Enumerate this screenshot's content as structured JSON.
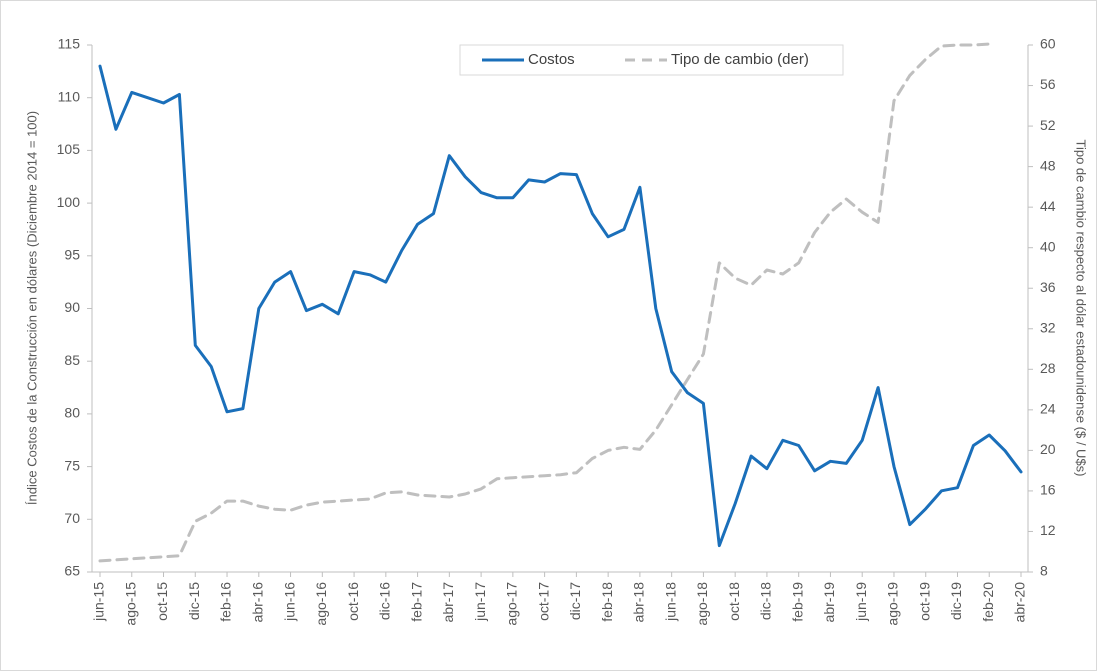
{
  "chart_data": {
    "type": "line",
    "y_label": "Índice Costos de la Construcción en dólares (Diciembre 2014 = 100)",
    "y2_label": "Tipo de cambio respecto al dólar estadounidense ($ / U$s)",
    "categories": [
      "jun-15",
      null,
      "ago-15",
      null,
      "oct-15",
      null,
      "dic-15",
      null,
      "feb-16",
      null,
      "abr-16",
      null,
      "jun-16",
      null,
      "ago-16",
      null,
      "oct-16",
      null,
      "dic-16",
      null,
      "feb-17",
      null,
      "abr-17",
      null,
      "jun-17",
      null,
      "ago-17",
      null,
      "oct-17",
      null,
      "dic-17",
      null,
      "feb-18",
      null,
      "abr-18",
      null,
      "jun-18",
      null,
      "ago-18",
      null,
      "oct-18",
      null,
      "dic-18",
      null,
      "feb-19",
      null,
      "abr-19",
      null,
      "jun-19",
      null,
      "ago-19",
      null,
      "oct-19",
      null,
      "dic-19",
      null,
      "feb-20",
      null,
      "abr-20"
    ],
    "series": [
      {
        "name": "Costos",
        "color": "#1a6fba",
        "dashed": false,
        "axis": "y",
        "values": [
          113,
          107,
          110.5,
          110,
          109.5,
          110.3,
          86.5,
          84.5,
          80.2,
          80.5,
          90,
          92.5,
          93.5,
          89.8,
          90.4,
          89.5,
          93.5,
          93.2,
          92.5,
          95.5,
          98,
          99,
          104.5,
          102.5,
          101,
          100.5,
          100.5,
          102.2,
          102,
          102.8,
          102.7,
          99,
          96.8,
          97.5,
          101.5,
          90,
          84,
          82,
          81,
          67.5,
          71.5,
          76,
          74.8,
          77.5,
          77,
          74.6,
          75.5,
          75.3,
          77.5,
          82.5,
          75,
          69.5,
          71,
          72.7,
          73,
          77,
          78,
          76.5,
          74.5
        ]
      },
      {
        "name": "Tipo de cambio (der)",
        "color": "#bfbfbf",
        "dashed": true,
        "axis": "y2",
        "values": [
          9.1,
          9.2,
          9.3,
          9.4,
          9.5,
          9.6,
          13,
          13.8,
          15,
          15,
          14.5,
          14.2,
          14.1,
          14.6,
          14.9,
          15,
          15.1,
          15.2,
          15.8,
          15.9,
          15.6,
          15.5,
          15.4,
          15.7,
          16.2,
          17.2,
          17.3,
          17.4,
          17.5,
          17.6,
          17.8,
          19.2,
          20,
          20.3,
          20.1,
          22,
          24.5,
          27,
          29.5,
          38.5,
          37,
          36.3,
          37.8,
          37.4,
          38.5,
          41.5,
          43.5,
          44.8,
          43.5,
          42.5,
          54.5,
          57,
          58.6,
          59.9,
          60,
          60,
          60.1,
          null,
          null
        ]
      }
    ],
    "ylim": [
      65,
      115
    ],
    "yticks": [
      65,
      70,
      75,
      80,
      85,
      90,
      95,
      100,
      105,
      110,
      115
    ],
    "y2lim": [
      8,
      60
    ],
    "y2ticks": [
      8,
      12,
      16,
      20,
      24,
      28,
      32,
      36,
      40,
      44,
      48,
      52,
      56,
      60
    ],
    "grid": false,
    "legend": "top"
  }
}
